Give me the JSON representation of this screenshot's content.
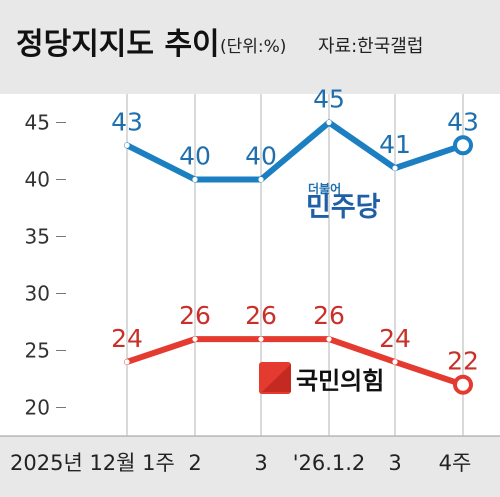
{
  "chart_data": {
    "type": "line",
    "title": "정당지지도 추이",
    "unit_note": "(단위:%)",
    "source": "자료:한국갤럽",
    "categories": [
      "2025년 12월 1주",
      "2",
      "3",
      "'26.1.2",
      "3",
      "4주"
    ],
    "ylim": [
      17.5,
      47.5
    ],
    "yticks": [
      20,
      25,
      30,
      35,
      40,
      45
    ],
    "grid": "vertical",
    "series": [
      {
        "name": "더불어 민주당",
        "name_small": "더불어",
        "name_large": "민주당",
        "color": "#1b7fc1",
        "label_color": "#1f6fae",
        "values": [
          43,
          40,
          40,
          45,
          41,
          43
        ]
      },
      {
        "name": "국민의힘",
        "color": "#e43a2f",
        "label_color": "#c9302a",
        "values": [
          24,
          26,
          26,
          26,
          24,
          22
        ]
      }
    ]
  }
}
